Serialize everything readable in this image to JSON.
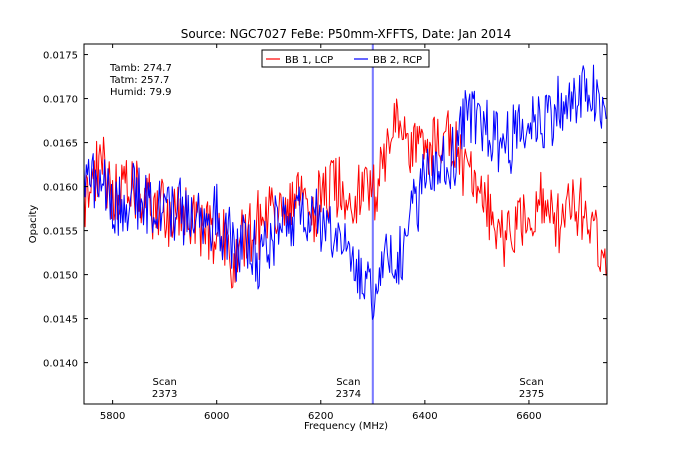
{
  "chart_data": {
    "type": "line",
    "title": "Source: NGC7027 FeBe: P50mm-XFFTS, Date: Jan 2014",
    "xlabel": "Frequency (MHz)",
    "ylabel": "Opacity",
    "xlim": [
      5745,
      6750
    ],
    "ylim": [
      0.01353,
      0.01762
    ],
    "xticks": [
      5800,
      6000,
      6200,
      6400,
      6600
    ],
    "xtick_labels": [
      "5800",
      "6000",
      "6200",
      "6400",
      "6600"
    ],
    "yticks": [
      0.014,
      0.0145,
      0.015,
      0.0155,
      0.016,
      0.0165,
      0.017,
      0.0175
    ],
    "ytick_labels": [
      "0.0140",
      "0.0145",
      "0.0150",
      "0.0155",
      "0.0160",
      "0.0165",
      "0.0170",
      "0.0175"
    ],
    "grid": false,
    "legend_position": "top-center",
    "weather": [
      "Tamb: 274.7",
      "Tatm: 257.7",
      "Humid: 79.9"
    ],
    "scans": [
      {
        "label": "Scan",
        "number": "2373",
        "x": 5900
      },
      {
        "label": "Scan",
        "number": "2374",
        "x": 6253
      },
      {
        "label": "Scan",
        "number": "2375",
        "x": 6605
      }
    ],
    "flagged_band": {
      "x": [
        6298,
        6302
      ],
      "color": "#6b6bff"
    },
    "series": [
      {
        "name": "BB 1, LCP",
        "color": "#ff0000",
        "x": [
          5745,
          5760,
          5780,
          5800,
          5820,
          5840,
          5860,
          5880,
          5900,
          5920,
          5940,
          5960,
          5980,
          6000,
          6015,
          6030,
          6045,
          6060,
          6080,
          6100,
          6120,
          6140,
          6160,
          6180,
          6200,
          6220,
          6240,
          6260,
          6280,
          6300,
          6320,
          6340,
          6360,
          6380,
          6400,
          6420,
          6440,
          6460,
          6480,
          6500,
          6520,
          6540,
          6560,
          6580,
          6600,
          6620,
          6640,
          6660,
          6680,
          6700,
          6720,
          6740,
          6750
        ],
        "y": [
          0.0158,
          0.0161,
          0.0162,
          0.016,
          0.0159,
          0.0159,
          0.0158,
          0.0158,
          0.0157,
          0.0157,
          0.0156,
          0.0156,
          0.0155,
          0.0155,
          0.0155,
          0.015,
          0.0154,
          0.0155,
          0.0156,
          0.0157,
          0.0157,
          0.0157,
          0.0158,
          0.0158,
          0.0158,
          0.016,
          0.016,
          0.0159,
          0.016,
          0.0159,
          0.0164,
          0.0166,
          0.0166,
          0.0165,
          0.0164,
          0.0165,
          0.0166,
          0.0164,
          0.0162,
          0.0159,
          0.0157,
          0.0156,
          0.0155,
          0.0156,
          0.0157,
          0.0158,
          0.0157,
          0.0156,
          0.0157,
          0.0158,
          0.0156,
          0.0153,
          0.0149
        ]
      },
      {
        "name": "BB 2, RCP",
        "color": "#0000ff",
        "x": [
          5745,
          5760,
          5780,
          5800,
          5820,
          5840,
          5860,
          5880,
          5900,
          5920,
          5940,
          5960,
          5980,
          6000,
          6015,
          6030,
          6045,
          6060,
          6080,
          6100,
          6120,
          6140,
          6160,
          6180,
          6200,
          6220,
          6240,
          6260,
          6280,
          6290,
          6300,
          6310,
          6320,
          6340,
          6360,
          6380,
          6400,
          6420,
          6440,
          6460,
          6480,
          6500,
          6520,
          6540,
          6560,
          6580,
          6600,
          6620,
          6640,
          6660,
          6680,
          6700,
          6720,
          6740,
          6750
        ],
        "y": [
          0.0162,
          0.0161,
          0.0161,
          0.0158,
          0.0158,
          0.0159,
          0.0158,
          0.0158,
          0.0158,
          0.0157,
          0.0157,
          0.0157,
          0.0156,
          0.0156,
          0.0155,
          0.0154,
          0.0153,
          0.0153,
          0.0152,
          0.0153,
          0.0156,
          0.0157,
          0.0158,
          0.0156,
          0.0155,
          0.0155,
          0.0154,
          0.0152,
          0.015,
          0.0151,
          0.0145,
          0.015,
          0.0152,
          0.0153,
          0.0152,
          0.0158,
          0.0162,
          0.0163,
          0.0162,
          0.0164,
          0.0168,
          0.0167,
          0.0167,
          0.0165,
          0.0166,
          0.0166,
          0.0167,
          0.0168,
          0.0168,
          0.0169,
          0.0169,
          0.017,
          0.0171,
          0.0168,
          0.0167
        ]
      }
    ]
  }
}
